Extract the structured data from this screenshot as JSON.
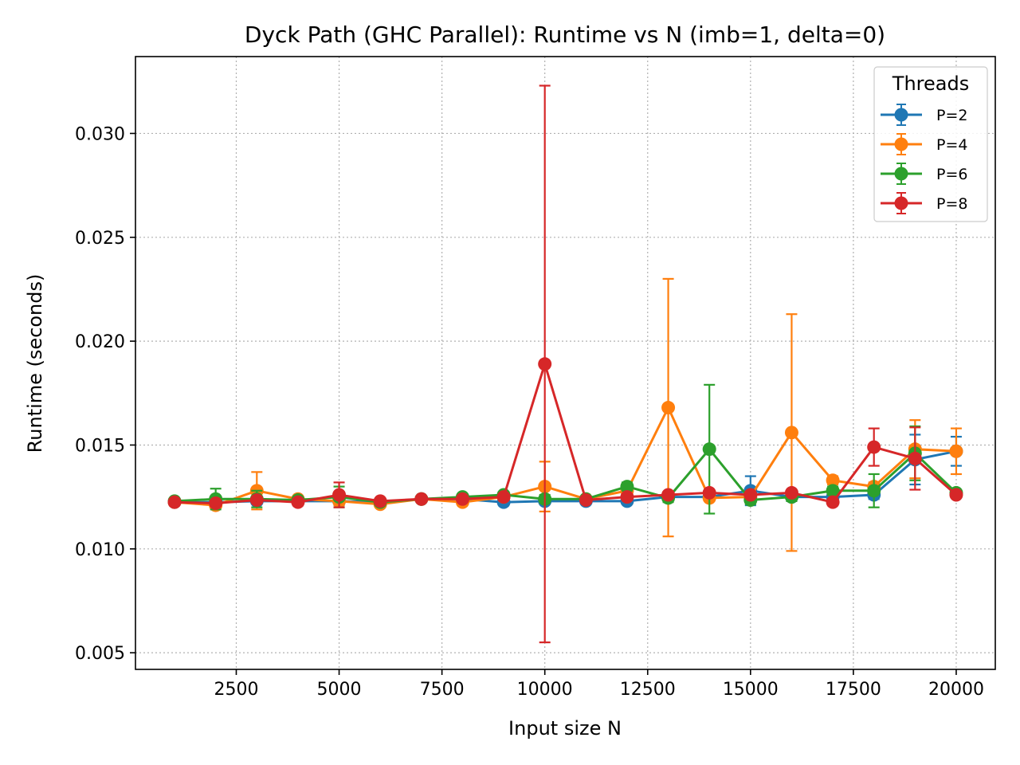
{
  "chart_data": {
    "type": "line",
    "title": "Dyck Path (GHC Parallel): Runtime vs N  (imb=1, delta=0)",
    "xlabel": "Input size N",
    "ylabel": "Runtime (seconds)",
    "xlim": [
      50,
      20950
    ],
    "ylim": [
      0.0042,
      0.0337
    ],
    "xticks": [
      2500,
      5000,
      7500,
      10000,
      12500,
      15000,
      17500,
      20000
    ],
    "xtick_labels": [
      "2500",
      "5000",
      "7500",
      "10000",
      "12500",
      "15000",
      "17500",
      "20000"
    ],
    "yticks": [
      0.005,
      0.01,
      0.015,
      0.02,
      0.025,
      0.03
    ],
    "ytick_labels": [
      "0.005",
      "0.010",
      "0.015",
      "0.020",
      "0.025",
      "0.030"
    ],
    "grid": true,
    "legend": {
      "title": "Threads",
      "position": "top-right"
    },
    "x": [
      1000,
      2000,
      3000,
      4000,
      5000,
      6000,
      7000,
      8000,
      9000,
      10000,
      11000,
      12000,
      13000,
      14000,
      15000,
      16000,
      17000,
      18000,
      19000,
      20000
    ],
    "series": [
      {
        "name": "P=2",
        "color": "#1f77b4",
        "values": [
          0.01225,
          0.01225,
          0.0123,
          0.0123,
          0.0123,
          0.01225,
          0.0124,
          0.0124,
          0.01225,
          0.0123,
          0.0123,
          0.0123,
          0.0125,
          0.0125,
          0.0128,
          0.0125,
          0.0125,
          0.0126,
          0.0143,
          0.0147
        ],
        "errors": [
          0.0001,
          0.0001,
          0.0001,
          0.0001,
          0.0002,
          0.0001,
          0.0001,
          0.0001,
          0.0001,
          0.0001,
          0.0001,
          0.0001,
          0.0001,
          0.0001,
          0.0007,
          0.0002,
          0.0001,
          0.0002,
          0.0012,
          0.0007
        ]
      },
      {
        "name": "P=4",
        "color": "#ff7f0e",
        "values": [
          0.01225,
          0.0121,
          0.0128,
          0.0124,
          0.0123,
          0.01215,
          0.0124,
          0.01225,
          0.0125,
          0.013,
          0.0124,
          0.0128,
          0.0168,
          0.01245,
          0.0125,
          0.0156,
          0.0133,
          0.013,
          0.0148,
          0.0147
        ],
        "errors": [
          0.0001,
          0.0001,
          0.0009,
          0.0001,
          0.0002,
          0.0001,
          0.0001,
          0.0001,
          0.0001,
          0.0012,
          0.0001,
          0.0002,
          0.0062,
          0.0001,
          0.0001,
          0.0057,
          0.0002,
          0.0002,
          0.0014,
          0.0011
        ]
      },
      {
        "name": "P=6",
        "color": "#2ca02c",
        "values": [
          0.0123,
          0.0124,
          0.0124,
          0.01235,
          0.0125,
          0.01225,
          0.0124,
          0.0125,
          0.0126,
          0.0124,
          0.0124,
          0.013,
          0.01245,
          0.0148,
          0.01235,
          0.0125,
          0.0128,
          0.0128,
          0.0146,
          0.0127
        ],
        "errors": [
          0.0001,
          0.0005,
          0.0004,
          0.0001,
          0.0005,
          0.0001,
          0.0001,
          0.0001,
          0.0001,
          0.0002,
          0.0001,
          0.0002,
          0.0002,
          0.0031,
          0.0002,
          0.0002,
          0.0002,
          0.0008,
          0.0013,
          0.0001
        ]
      },
      {
        "name": "P=8",
        "color": "#d62728",
        "values": [
          0.01225,
          0.0122,
          0.01235,
          0.01225,
          0.0126,
          0.0123,
          0.0124,
          0.0124,
          0.0125,
          0.0189,
          0.01235,
          0.0125,
          0.0126,
          0.0127,
          0.0126,
          0.0127,
          0.01225,
          0.0149,
          0.01435,
          0.0126
        ],
        "errors": [
          0.0001,
          0.0001,
          0.0001,
          0.0001,
          0.0006,
          0.0001,
          0.0001,
          0.0001,
          0.0001,
          0.0134,
          0.0001,
          0.0001,
          0.0001,
          0.0001,
          0.0001,
          0.0001,
          0.0001,
          0.0009,
          0.0015,
          0.0001
        ]
      }
    ]
  }
}
